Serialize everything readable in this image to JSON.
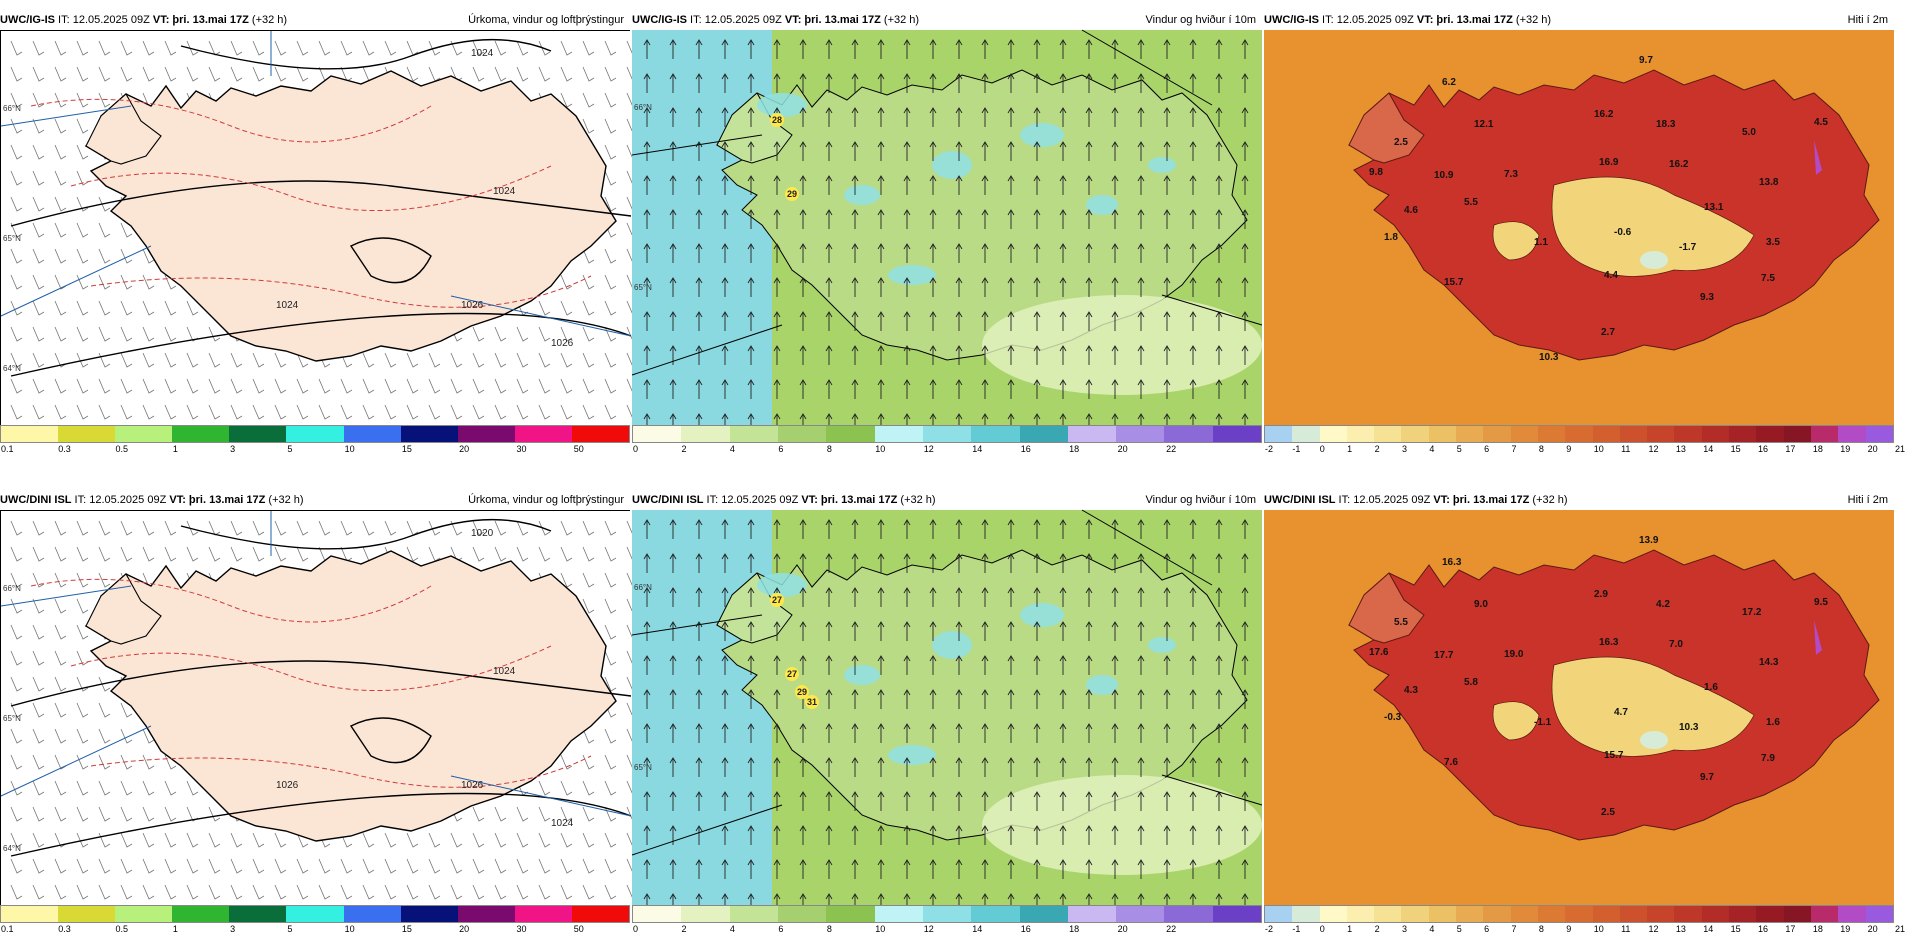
{
  "colors": {
    "land_precip": "#fbe6d6",
    "sea_precip": "#ffffff",
    "wind_sea": "#8ad8e0",
    "wind_land": "#a9d46a",
    "temp_sea": "#e8922f",
    "temp_land": "#c9332a",
    "temp_high": "#f2d57a",
    "isobar": "#000000",
    "contour_dash": "#d23b3b",
    "border_blue": "#1f5fa8"
  },
  "panels": [
    {
      "model": "UWC/IG-IS",
      "init": " IT: 12.05.2025 09Z ",
      "vt": "VT: þri. 13.mai 17Z",
      "lead": " (+32 h)",
      "title": "Úrkoma, vindur og loftþrýstingur",
      "type": "precip",
      "isobar_labels": [
        "1024",
        "1024",
        "1024",
        "1026",
        "1026"
      ],
      "lat_labels": [
        "66°N",
        "65°N",
        "64°N"
      ]
    },
    {
      "model": "UWC/IG-IS",
      "init": " IT: 12.05.2025 09Z ",
      "vt": "VT: þri. 13.mai 17Z",
      "lead": " (+32 h)",
      "title": "Vindur og hviður í 10m",
      "type": "wind",
      "gust_labels": [
        "28",
        "29"
      ],
      "lat_labels": [
        "66°N",
        "65°N"
      ]
    },
    {
      "model": "UWC/IG-IS",
      "init": " IT: 12.05.2025 09Z ",
      "vt": "VT: þri. 13.mai 17Z",
      "lead": " (+32 h)",
      "title": "Hiti í 2m",
      "type": "temp",
      "temp_labels": [
        "9.7",
        "6.2",
        "2.5",
        "12.1",
        "16.2",
        "18.3",
        "5.0",
        "4.5",
        "9.8",
        "10.9",
        "7.3",
        "16.9",
        "16.2",
        "13.8",
        "4.6",
        "5.5",
        "13.1",
        "1.8",
        "1.1",
        "-0.6",
        "-1.7",
        "3.5",
        "15.7",
        "4.4",
        "7.5",
        "9.3",
        "2.7",
        "10.3"
      ]
    },
    {
      "model": "UWC/DINI ISL",
      "init": " IT: 12.05.2025 09Z ",
      "vt": "VT: þri. 13.mai 17Z",
      "lead": " (+32 h)",
      "title": "Úrkoma, vindur og loftþrýstingur",
      "type": "precip",
      "isobar_labels": [
        "1020",
        "1024",
        "1026",
        "1026",
        "1024"
      ],
      "lat_labels": [
        "66°N",
        "65°N",
        "64°N"
      ]
    },
    {
      "model": "UWC/DINI ISL",
      "init": " IT: 12.05.2025 09Z ",
      "vt": "VT: þri. 13.mai 17Z",
      "lead": " (+32 h)",
      "title": "Vindur og hviður í 10m",
      "type": "wind",
      "gust_labels": [
        "27",
        "27",
        "29",
        "31"
      ],
      "lat_labels": [
        "66°N",
        "65°N"
      ]
    },
    {
      "model": "UWC/DINI ISL",
      "init": " IT: 12.05.2025 09Z ",
      "vt": "VT: þri. 13.mai 17Z",
      "lead": " (+32 h)",
      "title": "Hiti í 2m",
      "type": "temp",
      "temp_labels": [
        "13.9",
        "16.3",
        "5.5",
        "9.0",
        "2.9",
        "4.2",
        "17.2",
        "9.5",
        "17.6",
        "17.7",
        "19.0",
        "16.3",
        "7.0",
        "14.3",
        "4.3",
        "5.8",
        "1.6",
        "-0.3",
        "-1.1",
        "4.7",
        "10.3",
        "1.6",
        "7.6",
        "15.7",
        "7.9",
        "9.7",
        "2.5"
      ]
    }
  ],
  "colorbars": {
    "precip": {
      "ticks": [
        "0.1",
        "0.3",
        "0.5",
        "1",
        "3",
        "5",
        "10",
        "15",
        "20",
        "30",
        "50"
      ],
      "colors": [
        "#fff7a8",
        "#d9d936",
        "#b7f07a",
        "#2fb52f",
        "#0a6e3a",
        "#34f0e0",
        "#3a6ff0",
        "#06127a",
        "#7a0a6e",
        "#f01487",
        "#f00a0a"
      ]
    },
    "wind": {
      "ticks": [
        "0",
        "2",
        "4",
        "6",
        "8",
        "10",
        "12",
        "14",
        "16",
        "18",
        "20",
        "22"
      ],
      "colors": [
        "#fbfbe6",
        "#e3f2c0",
        "#c3e396",
        "#a6d070",
        "#8cc24f",
        "#bff3f5",
        "#8fe0e6",
        "#62cbd3",
        "#3aa8b2",
        "#c9b8f2",
        "#a98ee6",
        "#8b6ad8",
        "#6b3fc6"
      ]
    },
    "temp": {
      "ticks": [
        "-2",
        "-1",
        "0",
        "1",
        "2",
        "3",
        "4",
        "5",
        "6",
        "7",
        "8",
        "9",
        "10",
        "11",
        "12",
        "13",
        "14",
        "15",
        "16",
        "17",
        "18",
        "19",
        "20",
        "21"
      ],
      "colors": [
        "#a8d0f0",
        "#d7ecd8",
        "#fff9c8",
        "#fbeeae",
        "#f6e294",
        "#f1d27c",
        "#ecc065",
        "#e8ab52",
        "#e49a44",
        "#e08a3a",
        "#dc7a34",
        "#d86c30",
        "#d35e2e",
        "#cd512c",
        "#c6442a",
        "#bd3829",
        "#b22c28",
        "#a52226",
        "#961a24",
        "#861624",
        "#b82a6a",
        "#b24cc6",
        "#9a5ae0"
      ]
    }
  }
}
